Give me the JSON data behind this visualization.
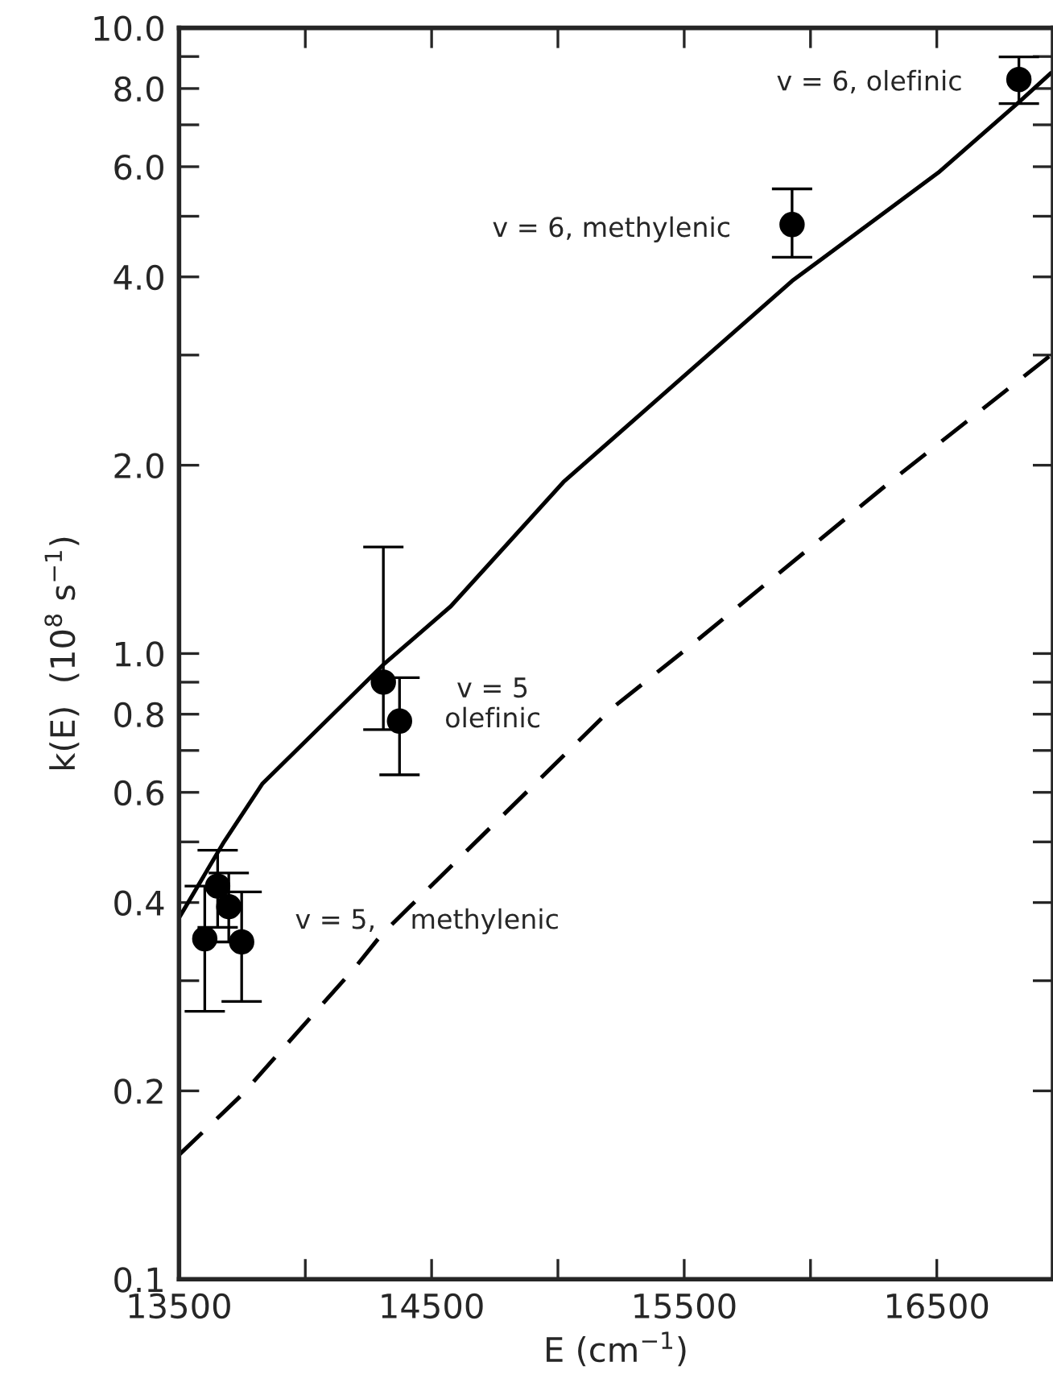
{
  "chart_data": {
    "type": "scatter",
    "xlabel": "E (cm$^{−1}$)",
    "ylabel": "k(E)  (10$^{8}$ s$^{−1}$)",
    "log": "y",
    "xlim": [
      13500,
      16960
    ],
    "ylim": [
      0.1,
      10.0
    ],
    "xticks": [
      13500,
      {
        "value": 14000,
        "label": null
      },
      14500,
      {
        "value": 15000,
        "label": null
      },
      15500,
      {
        "value": 16000,
        "label": null
      },
      16500
    ],
    "yticks": [
      0.1,
      0.2,
      {
        "value": 0.3,
        "label": null
      },
      0.4,
      {
        "value": 0.5,
        "label": null
      },
      0.6,
      {
        "value": 0.7,
        "label": null
      },
      0.8,
      {
        "value": 0.9,
        "label": null
      },
      {
        "value": 1.0,
        "label": "1.0"
      },
      {
        "value": 2.0,
        "label": "2.0"
      },
      {
        "value": 3.0,
        "label": null
      },
      {
        "value": 4.0,
        "label": "4.0"
      },
      {
        "value": 5.0,
        "label": null
      },
      {
        "value": 6.0,
        "label": "6.0"
      },
      {
        "value": 7.0,
        "label": null
      },
      {
        "value": 8.0,
        "label": "8.0"
      },
      {
        "value": 9.0,
        "label": null
      },
      {
        "value": 10.0,
        "label": "10.0"
      }
    ],
    "grid": false,
    "legend": false,
    "series": [
      {
        "marker": "circle",
        "color": "#000000",
        "x": [
          13602,
          13653,
          13697,
          13748,
          14309,
          14373,
          15927,
          16825
        ],
        "values": [
          0.35,
          0.425,
          0.394,
          0.346,
          0.9,
          0.78,
          4.85,
          8.27
        ],
        "errors": [
          [
            0.268,
            0.425
          ],
          [
            0.365,
            0.485
          ],
          [
            0.346,
            0.446
          ],
          [
            0.278,
            0.416
          ],
          [
            0.756,
            1.48
          ],
          [
            0.64,
            0.915
          ],
          [
            4.3,
            5.53
          ],
          [
            7.57,
            8.99
          ]
        ]
      },
      {
        "type": "line",
        "line_style": "solid",
        "color": "#000000",
        "x": [
          13500,
          13678,
          13831,
          14309,
          14576,
          15022,
          15927,
          16506,
          16825,
          16952
        ],
        "values": [
          0.378,
          0.5,
          0.62,
          0.96,
          1.19,
          1.88,
          3.94,
          5.87,
          7.61,
          8.47
        ]
      },
      {
        "type": "line",
        "line_style": "dashed",
        "color": "#000000",
        "x": [
          13500,
          13748,
          14200,
          14303,
          15213,
          15500,
          16322,
          16952
        ],
        "values": [
          0.158,
          0.197,
          0.316,
          0.356,
          0.817,
          1.01,
          1.89,
          3.0
        ]
      }
    ],
    "annotations": [
      "v = 6, olefinic",
      "v = 6, methylenic",
      "v = 5\nolefinic",
      "v = 5,    methylenic"
    ]
  }
}
